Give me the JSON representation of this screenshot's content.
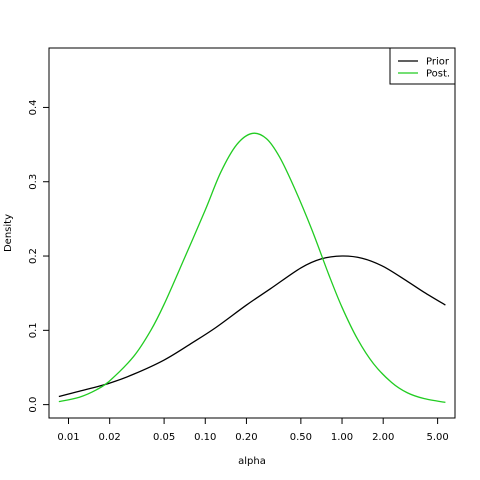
{
  "chart_data": {
    "type": "line",
    "xlabel": "alpha",
    "ylabel": "Density",
    "x_scale": "log",
    "xlim": [
      0.0072,
      6.7
    ],
    "ylim": [
      -0.018,
      0.48
    ],
    "x_ticks": [
      {
        "value": 0.01,
        "label": "0.01"
      },
      {
        "value": 0.02,
        "label": "0.02"
      },
      {
        "value": 0.05,
        "label": "0.05"
      },
      {
        "value": 0.1,
        "label": "0.10"
      },
      {
        "value": 0.2,
        "label": "0.20"
      },
      {
        "value": 0.5,
        "label": "0.50"
      },
      {
        "value": 1.0,
        "label": "1.00"
      },
      {
        "value": 2.0,
        "label": "2.00"
      },
      {
        "value": 5.0,
        "label": "5.00"
      }
    ],
    "y_ticks": [
      {
        "value": 0.0,
        "label": "0.0"
      },
      {
        "value": 0.1,
        "label": "0.1"
      },
      {
        "value": 0.2,
        "label": "0.2"
      },
      {
        "value": 0.3,
        "label": "0.3"
      },
      {
        "value": 0.4,
        "label": "0.4"
      }
    ],
    "grid": false,
    "legend_position": "top-right",
    "series": [
      {
        "name": "Prior",
        "color": "#000000",
        "x": [
          0.0085,
          0.012,
          0.02,
          0.03,
          0.05,
          0.08,
          0.12,
          0.2,
          0.3,
          0.5,
          0.7,
          1.0,
          1.4,
          2.0,
          3.0,
          4.0,
          5.7
        ],
        "y": [
          0.011,
          0.018,
          0.029,
          0.041,
          0.06,
          0.083,
          0.104,
          0.134,
          0.156,
          0.184,
          0.196,
          0.2,
          0.197,
          0.186,
          0.166,
          0.151,
          0.134
        ]
      },
      {
        "name": "Post.",
        "color": "#22cc22",
        "x": [
          0.0085,
          0.012,
          0.016,
          0.02,
          0.03,
          0.04,
          0.05,
          0.07,
          0.1,
          0.13,
          0.17,
          0.22,
          0.28,
          0.35,
          0.45,
          0.6,
          0.8,
          1.0,
          1.3,
          1.7,
          2.3,
          3.0,
          4.0,
          5.7
        ],
        "y": [
          0.004,
          0.01,
          0.02,
          0.032,
          0.065,
          0.1,
          0.135,
          0.196,
          0.262,
          0.313,
          0.35,
          0.365,
          0.358,
          0.333,
          0.291,
          0.236,
          0.175,
          0.131,
          0.088,
          0.055,
          0.03,
          0.016,
          0.008,
          0.003
        ]
      }
    ]
  }
}
